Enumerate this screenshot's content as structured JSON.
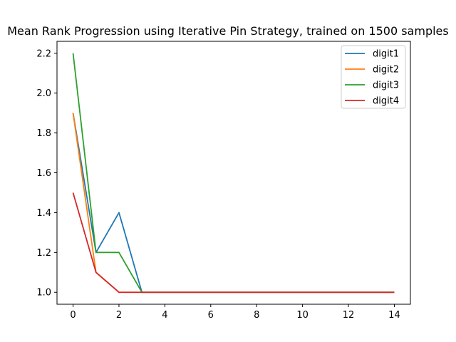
{
  "chart_data": {
    "type": "line",
    "title": "Mean Rank Progression using Iterative Pin Strategy, trained on 1500 samples",
    "xlabel": "",
    "ylabel": "",
    "x": [
      0,
      1,
      2,
      3,
      4,
      5,
      6,
      7,
      8,
      9,
      10,
      11,
      12,
      13,
      14
    ],
    "xlim": [
      -0.7,
      14.7
    ],
    "ylim": [
      0.94,
      2.26
    ],
    "xticks": [
      0,
      2,
      4,
      6,
      8,
      10,
      12,
      14
    ],
    "yticks": [
      1.0,
      1.2,
      1.4,
      1.6,
      1.8,
      2.0,
      2.2
    ],
    "grid": false,
    "legend_position": "top-right",
    "series": [
      {
        "name": "digit1",
        "color": "#1f77b4",
        "values": [
          1.9,
          1.2,
          1.4,
          1.0,
          1.0,
          1.0,
          1.0,
          1.0,
          1.0,
          1.0,
          1.0,
          1.0,
          1.0,
          1.0,
          1.0
        ]
      },
      {
        "name": "digit2",
        "color": "#ff7f0e",
        "values": [
          1.9,
          1.1,
          1.0,
          1.0,
          1.0,
          1.0,
          1.0,
          1.0,
          1.0,
          1.0,
          1.0,
          1.0,
          1.0,
          1.0,
          1.0
        ]
      },
      {
        "name": "digit3",
        "color": "#2ca02c",
        "values": [
          2.2,
          1.2,
          1.2,
          1.0,
          1.0,
          1.0,
          1.0,
          1.0,
          1.0,
          1.0,
          1.0,
          1.0,
          1.0,
          1.0,
          1.0
        ]
      },
      {
        "name": "digit4",
        "color": "#d62728",
        "values": [
          1.5,
          1.1,
          1.0,
          1.0,
          1.0,
          1.0,
          1.0,
          1.0,
          1.0,
          1.0,
          1.0,
          1.0,
          1.0,
          1.0,
          1.0
        ]
      }
    ]
  }
}
